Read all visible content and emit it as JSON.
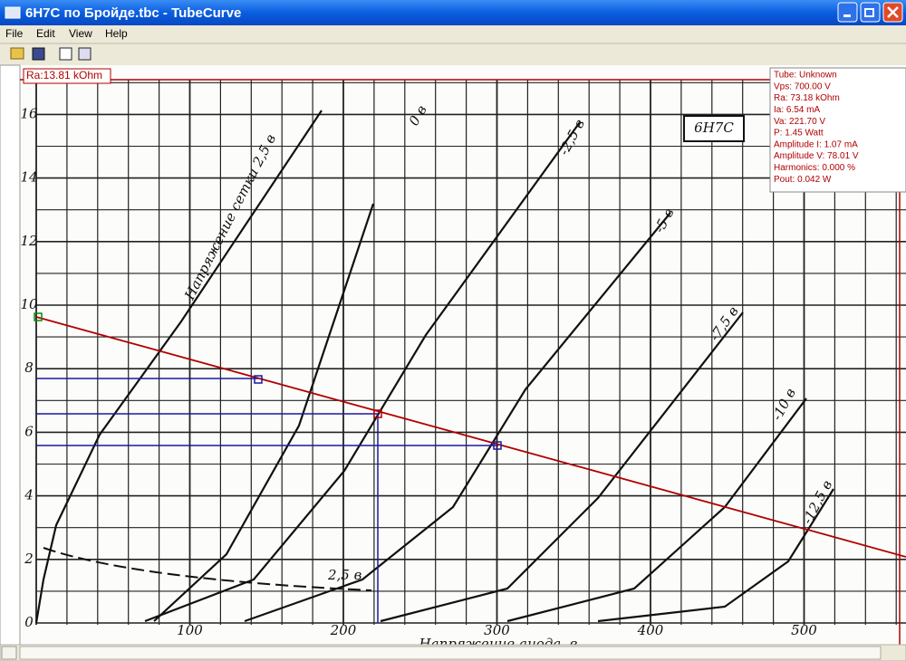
{
  "window": {
    "title": "6H7C по Бройде.tbc - TubeCurve"
  },
  "menu": [
    "File",
    "Edit",
    "View",
    "Help"
  ],
  "status": "Ra:13.81 kOhm",
  "info": [
    "Tube: Unknown",
    "Vps: 700.00 V",
    "Ra: 73.18 kOhm",
    "Ia: 6.54 mA",
    "Va: 221.70 V",
    "P: 1.45 Watt",
    "Amplitude I: 1.07 mA",
    "Amplitude V: 78.01 V",
    "Harmonics: 0.000 %",
    "Pout: 0.042 W"
  ],
  "plot": {
    "tag": "6H7C",
    "y_labels": [
      "0",
      "2",
      "4",
      "6",
      "8",
      "10",
      "12",
      "14",
      "16"
    ],
    "x_labels": [
      "100",
      "200",
      "300",
      "400",
      "500"
    ],
    "curve_labels": [
      "Напряжение сетки 2,5 в",
      "0 в",
      "-2,5 в",
      "-5 в",
      "-7,5 в",
      "-10 в",
      "-12,5 в"
    ],
    "dashed_label": "2,5 в",
    "x_axis_label": "Напряжение анода, в"
  }
}
